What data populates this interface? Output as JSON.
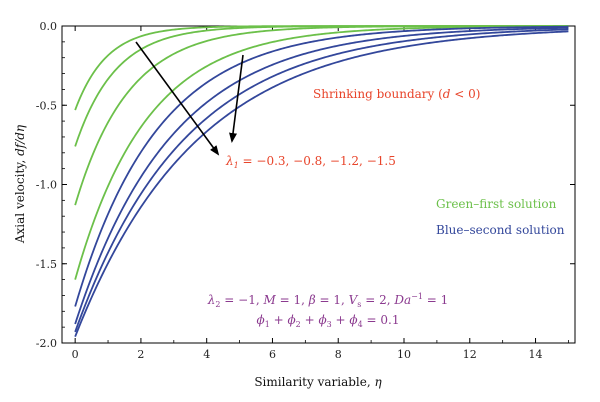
{
  "chart_data": {
    "type": "line",
    "xlabel_text": "Similarity variable, ",
    "xlabel_sym": "η",
    "ylabel_text": "Axial velocity, ",
    "ylabel_sym": "df/dη",
    "xlim": [
      -0.4,
      15.2
    ],
    "ylim": [
      -2.0,
      0.0
    ],
    "xticks": [
      0,
      2,
      4,
      6,
      8,
      10,
      12,
      14
    ],
    "yticks": [
      0.0,
      -0.5,
      -1.0,
      -1.5,
      -2.0
    ],
    "xtick_labels": [
      "0",
      "2",
      "4",
      "6",
      "8",
      "10",
      "12",
      "14"
    ],
    "ytick_labels": [
      "0.0",
      "-0.5",
      "-1.0",
      "-1.5",
      "-2.0"
    ],
    "colors": {
      "green": "#6cc04a",
      "blue": "#33479b",
      "red": "#e8442a",
      "purple": "#8b3a8f",
      "arrow": "#000000"
    },
    "series": [
      {
        "group": "first",
        "color": "#6cc04a",
        "y0": -0.53,
        "decay": 1.05
      },
      {
        "group": "first",
        "color": "#6cc04a",
        "y0": -0.76,
        "decay": 0.82
      },
      {
        "group": "first",
        "color": "#6cc04a",
        "y0": -1.13,
        "decay": 0.62
      },
      {
        "group": "first",
        "color": "#6cc04a",
        "y0": -1.6,
        "decay": 0.46
      },
      {
        "group": "second",
        "color": "#33479b",
        "y0": -1.77,
        "decay": 0.4
      },
      {
        "group": "second",
        "color": "#33479b",
        "y0": -1.88,
        "decay": 0.34
      },
      {
        "group": "second",
        "color": "#33479b",
        "y0": -1.93,
        "decay": 0.3
      },
      {
        "group": "second",
        "color": "#33479b",
        "y0": -1.96,
        "decay": 0.27
      }
    ],
    "annotations": {
      "shrinking": {
        "text": "Shrinking boundary (",
        "var": "d",
        "cond": " < 0)"
      },
      "lambda1": {
        "sym": "λ",
        "sub": "1",
        "values": " = −0.3, −0.8, −1.2, −1.5"
      },
      "green_label": "Green–first solution",
      "blue_label": "Blue–second solution",
      "params_line1": [
        {
          "t": "λ",
          "i": true
        },
        {
          "t": "2",
          "sub": true
        },
        {
          "t": " = −1, "
        },
        {
          "t": "M",
          "i": true
        },
        {
          "t": " = 1, "
        },
        {
          "t": "β",
          "i": true
        },
        {
          "t": " = 1, "
        },
        {
          "t": "V",
          "i": true
        },
        {
          "t": "s",
          "sub": true
        },
        {
          "t": " = 2, "
        },
        {
          "t": "Da",
          "i": true
        },
        {
          "t": "−1",
          "sup": true
        },
        {
          "t": " = 1"
        }
      ],
      "params_line2": [
        {
          "t": "ϕ",
          "i": true
        },
        {
          "t": "1",
          "sub": true
        },
        {
          "t": " + "
        },
        {
          "t": "ϕ",
          "i": true
        },
        {
          "t": "2",
          "sub": true
        },
        {
          "t": " + "
        },
        {
          "t": "ϕ",
          "i": true
        },
        {
          "t": "3",
          "sub": true
        },
        {
          "t": " + "
        },
        {
          "t": "ϕ",
          "i": true
        },
        {
          "t": "4",
          "sub": true
        },
        {
          "t": " = 0.1"
        }
      ]
    }
  }
}
